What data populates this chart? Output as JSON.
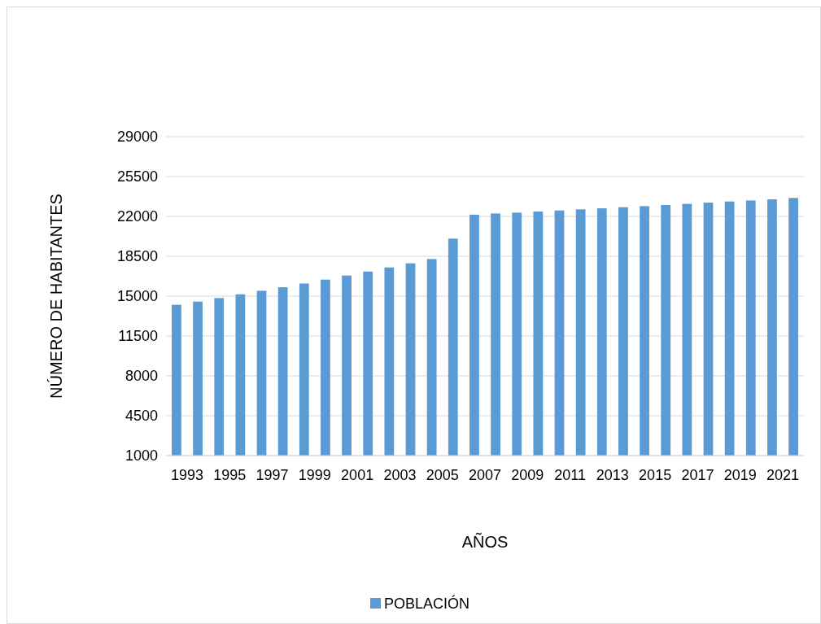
{
  "chart_data": {
    "type": "bar",
    "xlabel": "AÑOS",
    "ylabel": "NÚMERO DE HABITANTES",
    "categories": [
      "1993",
      null,
      "1995",
      null,
      "1997",
      null,
      "1999",
      null,
      "2001",
      null,
      "2003",
      null,
      "2005",
      null,
      "2007",
      null,
      "2009",
      null,
      "2011",
      null,
      "2013",
      null,
      "2015",
      null,
      "2017",
      null,
      "2019",
      null,
      "2021",
      null
    ],
    "series": [
      {
        "name": "POBLACIÓN",
        "color": "#5b9bd5",
        "values": [
          14240,
          14520,
          14830,
          15160,
          15470,
          15780,
          16110,
          16450,
          16810,
          17160,
          17520,
          17880,
          18260,
          20050,
          22150,
          22260,
          22330,
          22430,
          22520,
          22620,
          22710,
          22810,
          22900,
          23000,
          23100,
          23210,
          23310,
          23400,
          23500,
          23620
        ]
      }
    ],
    "ylim": [
      1000,
      29000
    ],
    "yticks": [
      1000,
      4500,
      8000,
      11500,
      15000,
      18500,
      22000,
      25500,
      29000
    ],
    "grid": "y",
    "legend": "bottom"
  }
}
